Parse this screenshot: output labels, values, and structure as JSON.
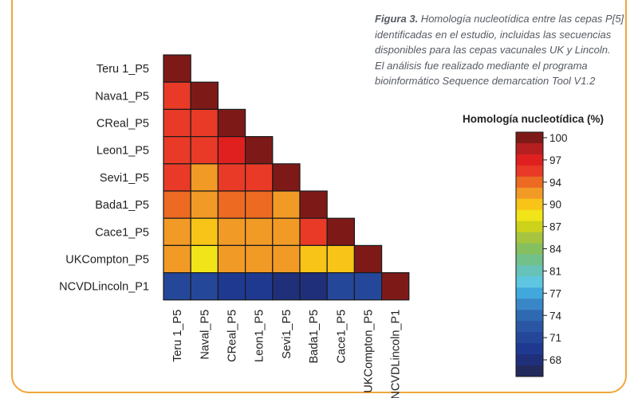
{
  "caption": {
    "label": "Figura 3.",
    "lines": [
      " Homología nucleotídica entre las cepas P[5]",
      "identificadas en el estudio, incluidas las secuencias",
      "disponibles para las cepas vacunales UK y Lincoln.",
      "El análisis fue realizado mediante el programa",
      "bioinformático Sequence demarcation Tool V1.2"
    ]
  },
  "chart_data": {
    "type": "heatmap",
    "row_labels": [
      "Teru 1_P5",
      "Nava1_P5",
      "CReal_P5",
      "Leon1_P5",
      "Sevi1_P5",
      "Bada1_P5",
      "Cace1_P5",
      "UKCompton_P5",
      "NCVDLincoln_P1"
    ],
    "column_labels": [
      "Teru 1_P5",
      "Naval_P5",
      "CReal_P5",
      "Leon1_P5",
      "Sevi1_P5",
      "Bada1_P5",
      "Cace1_P5",
      "UKCompton_P5",
      "NCVDLincoln_P1"
    ],
    "values": [
      [
        100
      ],
      [
        95,
        100
      ],
      [
        96,
        95,
        100
      ],
      [
        96,
        95,
        97,
        100
      ],
      [
        95,
        93,
        95,
        95,
        100
      ],
      [
        94,
        92,
        94,
        94,
        93,
        100
      ],
      [
        93,
        91,
        93,
        93,
        92,
        95,
        100
      ],
      [
        92,
        89,
        93,
        92,
        92,
        91,
        91,
        100
      ],
      [
        71,
        71,
        70,
        70,
        69,
        68,
        72,
        71,
        100
      ]
    ],
    "legend": {
      "title": "Homología nucleotídica (%)",
      "ticks": [
        100,
        97,
        94,
        90,
        87,
        84,
        81,
        77,
        74,
        71,
        68
      ],
      "colors": [
        "#7d1a18",
        "#b51f1f",
        "#e01f1f",
        "#e83a27",
        "#ec6a22",
        "#f29a26",
        "#f7c417",
        "#f1e418",
        "#cdd21b",
        "#a6c43f",
        "#86bf5e",
        "#72c08a",
        "#67c3b9",
        "#5ec6e0",
        "#41a8dc",
        "#3a87c8",
        "#2f69b1",
        "#2a56a3",
        "#25479a",
        "#203990",
        "#1f2f7a",
        "#222a5c"
      ],
      "min": 66,
      "max": 101
    }
  }
}
